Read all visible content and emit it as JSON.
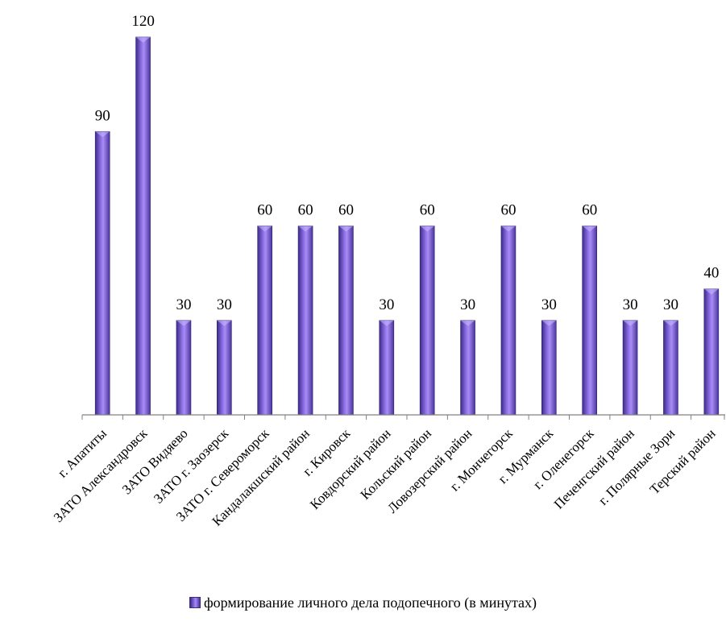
{
  "colors": {
    "bar": "#8f72e8",
    "bar_dark": "#3d2b8a",
    "bar_light": "#a98cf5",
    "axis": "#808080"
  },
  "chart_data": {
    "type": "bar",
    "categories": [
      "г. Апатиты",
      "ЗАТО Александровск",
      "ЗАТО Видяево",
      "ЗАТО г. Заозерск",
      "ЗАТО г. Североморск",
      "Кандалакшский район",
      "г. Кировск",
      "Ковдорский район",
      "Кольский район",
      "Ловозерский район",
      "г. Мончегорск",
      "г. Мурманск",
      "г. Оленегорск",
      "Печенгский район",
      "г. Полярные Зори",
      "Терский район"
    ],
    "series": [
      {
        "name": "формирование личного дела подопечного (в минутах)",
        "values": [
          90,
          120,
          30,
          30,
          60,
          60,
          60,
          30,
          60,
          30,
          60,
          30,
          60,
          30,
          30,
          40
        ]
      }
    ],
    "data_labels": [
      "90",
      "120",
      "30",
      "30",
      "60",
      "60",
      "60",
      "30",
      "60",
      "30",
      "60",
      "30",
      "60",
      "30",
      "30",
      "40"
    ],
    "ylim": [
      0,
      120
    ],
    "grid": false,
    "legend": "bottom"
  }
}
